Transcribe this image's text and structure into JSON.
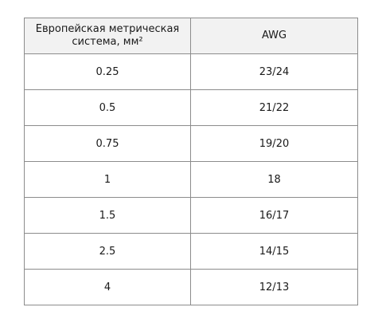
{
  "table": {
    "headers": {
      "metric_line1": "Европейская метрическая",
      "metric_line2": "система, мм²",
      "awg": "AWG"
    },
    "rows": [
      {
        "metric": "0.25",
        "awg": "23/24"
      },
      {
        "metric": "0.5",
        "awg": "21/22"
      },
      {
        "metric": "0.75",
        "awg": "19/20"
      },
      {
        "metric": "1",
        "awg": "18"
      },
      {
        "metric": "1.5",
        "awg": "16/17"
      },
      {
        "metric": "2.5",
        "awg": "14/15"
      },
      {
        "metric": "4",
        "awg": "12/13"
      }
    ]
  }
}
